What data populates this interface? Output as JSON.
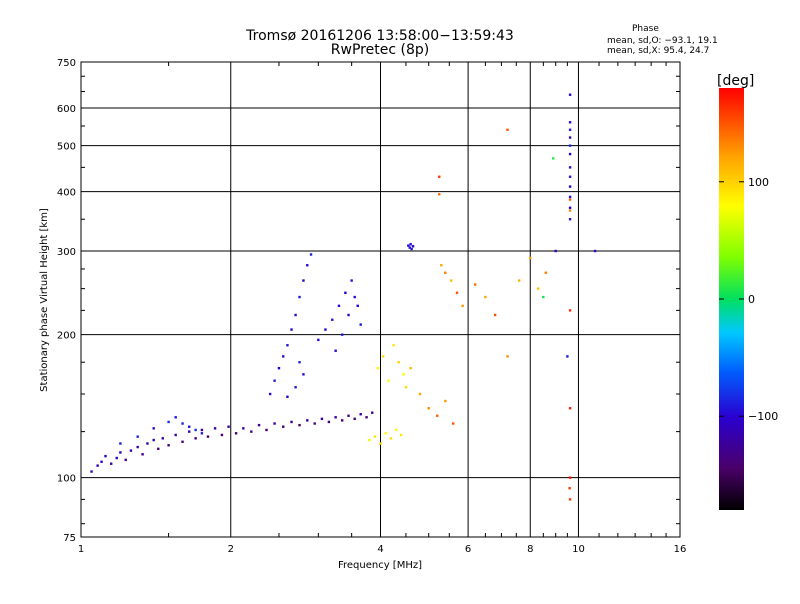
{
  "chart_data": {
    "type": "scatter",
    "title": "Tromsø 20161206 13:58:00−13:59:43",
    "subtitle": "RwPretec (8p)",
    "xlabel": "Frequency [MHz]",
    "ylabel": "Stationary phase Virtual Height [km]",
    "x_scale": "log",
    "y_scale": "log",
    "xlim": [
      1,
      16
    ],
    "ylim": [
      75,
      750
    ],
    "x_ticks": [
      1,
      2,
      4,
      6,
      8,
      10,
      16
    ],
    "x_tick_labels": [
      "1",
      "2",
      "4",
      "6",
      "8",
      "10",
      "16"
    ],
    "y_ticks": [
      75,
      100,
      200,
      300,
      400,
      500,
      600,
      750
    ],
    "y_tick_labels": [
      "75",
      "100",
      "200",
      "300",
      "400",
      "500",
      "600",
      "750"
    ],
    "grid": true,
    "stats": {
      "header": "Phase",
      "line1": "mean, sd,O: −93.1, 19.1",
      "line2": "mean, sd,X:  95.4, 24.7"
    },
    "colorbar": {
      "unit_label": "[deg]",
      "range": [
        -180,
        180
      ],
      "ticks": [
        100,
        0,
        -100
      ],
      "tick_labels": [
        "100",
        "0",
        "−100"
      ]
    },
    "series": [
      {
        "points": [
          [
            1.05,
            103,
            -110
          ],
          [
            1.08,
            106,
            -115
          ],
          [
            1.1,
            108,
            -105
          ],
          [
            1.12,
            111,
            -100
          ],
          [
            1.15,
            107,
            -120
          ],
          [
            1.18,
            110,
            -110
          ],
          [
            1.2,
            113,
            -105
          ],
          [
            1.23,
            109,
            -125
          ],
          [
            1.26,
            114,
            -110
          ],
          [
            1.3,
            116,
            -115
          ],
          [
            1.33,
            112,
            -130
          ],
          [
            1.36,
            118,
            -120
          ],
          [
            1.4,
            120,
            -110
          ],
          [
            1.43,
            115,
            -140
          ],
          [
            1.46,
            121,
            -115
          ],
          [
            1.5,
            117,
            -135
          ],
          [
            1.55,
            123,
            -120
          ],
          [
            1.6,
            119,
            -140
          ],
          [
            1.65,
            125,
            -115
          ],
          [
            1.7,
            121,
            -135
          ],
          [
            1.75,
            126,
            -125
          ],
          [
            1.8,
            122,
            -145
          ],
          [
            1.86,
            127,
            -120
          ],
          [
            1.92,
            123,
            -140
          ],
          [
            1.98,
            128,
            -125
          ],
          [
            2.05,
            124,
            -145
          ],
          [
            2.12,
            127,
            -120
          ],
          [
            2.2,
            125,
            -140
          ],
          [
            2.28,
            129,
            -125
          ],
          [
            2.36,
            126,
            -145
          ],
          [
            2.45,
            130,
            -120
          ],
          [
            2.55,
            128,
            -140
          ],
          [
            2.65,
            131,
            -125
          ],
          [
            2.75,
            129,
            -145
          ],
          [
            2.85,
            132,
            -120
          ],
          [
            2.95,
            130,
            -140
          ],
          [
            3.05,
            133,
            -125
          ],
          [
            3.15,
            131,
            -145
          ],
          [
            3.25,
            134,
            -120
          ],
          [
            3.35,
            132,
            -140
          ],
          [
            3.45,
            135,
            -125
          ],
          [
            3.55,
            133,
            -145
          ],
          [
            3.65,
            136,
            -120
          ],
          [
            3.75,
            134,
            -140
          ],
          [
            3.85,
            137,
            -125
          ]
        ]
      },
      {
        "points": [
          [
            1.2,
            118,
            -90
          ],
          [
            1.3,
            122,
            -85
          ],
          [
            1.4,
            127,
            -95
          ],
          [
            1.5,
            131,
            -80
          ],
          [
            1.55,
            134,
            -90
          ],
          [
            1.6,
            130,
            -85
          ],
          [
            1.65,
            128,
            -95
          ],
          [
            1.7,
            126,
            -80
          ],
          [
            1.75,
            124,
            -90
          ]
        ]
      },
      {
        "points": [
          [
            2.4,
            150,
            -95
          ],
          [
            2.45,
            160,
            -90
          ],
          [
            2.5,
            170,
            -100
          ],
          [
            2.55,
            180,
            -95
          ],
          [
            2.6,
            190,
            -90
          ],
          [
            2.65,
            205,
            -100
          ],
          [
            2.7,
            220,
            -95
          ],
          [
            2.75,
            240,
            -90
          ],
          [
            2.8,
            260,
            -100
          ],
          [
            2.85,
            280,
            -95
          ],
          [
            2.9,
            295,
            -90
          ],
          [
            2.75,
            175,
            -85
          ],
          [
            2.8,
            165,
            -95
          ],
          [
            2.7,
            155,
            -90
          ],
          [
            2.6,
            148,
            -100
          ]
        ]
      },
      {
        "points": [
          [
            3.0,
            195,
            -95
          ],
          [
            3.1,
            205,
            -100
          ],
          [
            3.2,
            215,
            -90
          ],
          [
            3.3,
            230,
            -95
          ],
          [
            3.4,
            245,
            -100
          ],
          [
            3.5,
            260,
            -90
          ],
          [
            3.55,
            240,
            -95
          ],
          [
            3.45,
            220,
            -100
          ],
          [
            3.35,
            200,
            -90
          ],
          [
            3.25,
            185,
            -95
          ],
          [
            3.6,
            230,
            -100
          ],
          [
            3.65,
            210,
            -90
          ]
        ]
      },
      {
        "points": [
          [
            3.8,
            120,
            70
          ],
          [
            3.9,
            122,
            90
          ],
          [
            4.0,
            118,
            100
          ],
          [
            4.1,
            124,
            80
          ],
          [
            4.2,
            121,
            95
          ],
          [
            4.3,
            126,
            75
          ],
          [
            4.4,
            123,
            90
          ],
          [
            3.95,
            170,
            85
          ],
          [
            4.05,
            180,
            95
          ],
          [
            4.15,
            160,
            80
          ],
          [
            4.25,
            190,
            90
          ],
          [
            4.35,
            175,
            100
          ],
          [
            4.45,
            165,
            85
          ],
          [
            4.5,
            155,
            95
          ],
          [
            4.6,
            170,
            110
          ],
          [
            4.8,
            150,
            120
          ],
          [
            5.0,
            140,
            130
          ],
          [
            5.2,
            135,
            145
          ],
          [
            5.4,
            145,
            125
          ],
          [
            5.6,
            130,
            150
          ]
        ]
      },
      {
        "points": [
          [
            4.55,
            308,
            -95
          ],
          [
            4.6,
            310,
            -90
          ],
          [
            4.65,
            307,
            -100
          ],
          [
            4.58,
            305,
            -95
          ],
          [
            4.62,
            303,
            -90
          ]
        ]
      },
      {
        "points": [
          [
            5.3,
            280,
            120
          ],
          [
            5.4,
            270,
            135
          ],
          [
            5.55,
            260,
            110
          ],
          [
            5.7,
            245,
            150
          ],
          [
            5.85,
            230,
            125
          ],
          [
            6.2,
            255,
            140
          ],
          [
            6.5,
            240,
            120
          ],
          [
            6.8,
            220,
            150
          ],
          [
            7.2,
            180,
            130
          ],
          [
            7.6,
            260,
            115
          ],
          [
            8.0,
            290,
            120
          ],
          [
            8.3,
            250,
            105
          ],
          [
            8.6,
            270,
            135
          ],
          [
            9.0,
            300,
            -110
          ]
        ]
      },
      {
        "points": [
          [
            5.25,
            430,
            160
          ],
          [
            5.25,
            395,
            140
          ],
          [
            7.2,
            540,
            150
          ],
          [
            8.9,
            470,
            10
          ],
          [
            8.5,
            240,
            5
          ],
          [
            9.5,
            180,
            -90
          ],
          [
            9.6,
            95,
            160
          ]
        ]
      },
      {
        "points": [
          [
            9.62,
            640,
            -100
          ],
          [
            9.62,
            560,
            -95
          ],
          [
            9.62,
            540,
            -90
          ],
          [
            9.62,
            520,
            -110
          ],
          [
            9.62,
            500,
            -85
          ],
          [
            9.62,
            480,
            -100
          ],
          [
            9.62,
            450,
            -95
          ],
          [
            9.62,
            430,
            -90
          ],
          [
            9.62,
            410,
            -105
          ],
          [
            9.62,
            390,
            -95
          ],
          [
            9.62,
            370,
            -100
          ],
          [
            9.62,
            350,
            -90
          ]
        ]
      },
      {
        "points": [
          [
            9.62,
            385,
            150
          ],
          [
            9.62,
            365,
            130
          ],
          [
            9.62,
            225,
            165
          ],
          [
            9.62,
            140,
            170
          ],
          [
            9.62,
            100,
            175
          ],
          [
            9.62,
            90,
            160
          ],
          [
            10.8,
            300,
            -95
          ]
        ]
      }
    ]
  }
}
